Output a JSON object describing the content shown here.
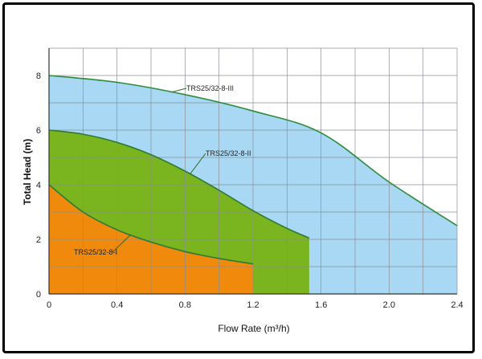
{
  "chart_data": {
    "type": "area",
    "xlabel": "Flow Rate (m³/h)",
    "ylabel": "Total  Head (m)",
    "xlim": [
      0,
      2.4
    ],
    "ylim": [
      0,
      9
    ],
    "x_ticks": [
      "0",
      "0.4",
      "0.8",
      "1.2",
      "1.6",
      "2.0",
      "2.4"
    ],
    "y_ticks": [
      "0",
      "2",
      "4",
      "6",
      "8"
    ],
    "grid": true,
    "series": [
      {
        "name": "TRS25/32-8-III",
        "fill": "#a8d8f4",
        "line": "#2e8b3e",
        "x": [
          0,
          0.4,
          0.8,
          1.2,
          1.6,
          2.0,
          2.4
        ],
        "values": [
          8.0,
          7.75,
          7.3,
          6.7,
          5.9,
          4.1,
          2.5
        ]
      },
      {
        "name": "TRS25/32-8-II",
        "fill": "#7ab41f",
        "line": "#2e7a35",
        "x": [
          0,
          0.2,
          0.4,
          0.6,
          0.8,
          1.0,
          1.2,
          1.4,
          1.53
        ],
        "values": [
          6.0,
          5.85,
          5.55,
          5.1,
          4.5,
          3.8,
          3.05,
          2.4,
          2.05
        ]
      },
      {
        "name": "TRS25/32-8-I",
        "fill": "#f08a0c",
        "line": "#2e7a35",
        "x": [
          0,
          0.2,
          0.4,
          0.6,
          0.8,
          1.0,
          1.2
        ],
        "values": [
          4.0,
          3.0,
          2.35,
          1.9,
          1.55,
          1.3,
          1.1
        ]
      }
    ]
  }
}
